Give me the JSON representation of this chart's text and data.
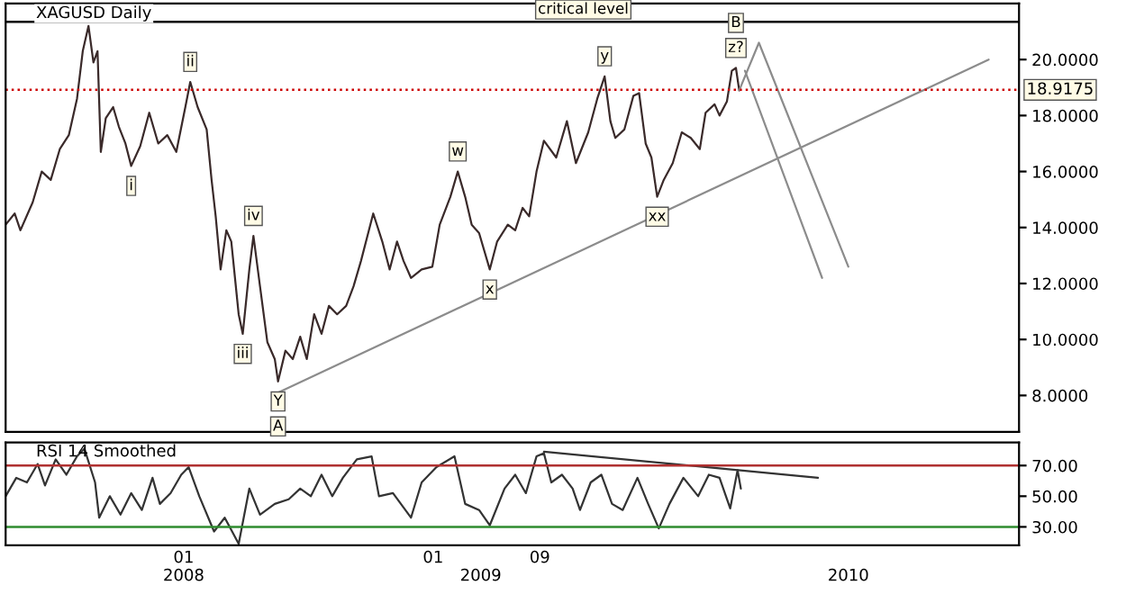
{
  "chart_data": [
    {
      "type": "line",
      "title": "XAGUSD Daily",
      "xlim": [
        "2007-11-27",
        "2011-04-15"
      ],
      "ylim": [
        6.7,
        22.0
      ],
      "yticks": [
        {
          "value": 8,
          "label": "8.0000"
        },
        {
          "value": 10,
          "label": "10.0000"
        },
        {
          "value": 12,
          "label": "12.0000"
        },
        {
          "value": 14,
          "label": "14.0000"
        },
        {
          "value": 16,
          "label": "16.0000"
        },
        {
          "value": 18,
          "label": "18.0000"
        },
        {
          "value": 20,
          "label": "20.0000"
        }
      ],
      "tick_labels": "y",
      "series": [
        {
          "color": "#3a2a2a",
          "x": [
            "2007-11-27",
            "2007-12-08",
            "2007-12-15",
            "2007-12-30",
            "2008-01-10",
            "2008-01-21",
            "2008-02-01",
            "2008-02-12",
            "2008-02-22",
            "2008-02-29",
            "2008-03-07",
            "2008-03-13",
            "2008-03-18",
            "2008-03-22",
            "2008-03-28",
            "2008-04-06",
            "2008-04-13",
            "2008-04-21",
            "2008-04-28",
            "2008-05-09",
            "2008-05-20",
            "2008-05-31",
            "2008-06-11",
            "2008-06-22",
            "2008-07-03",
            "2008-07-09",
            "2008-07-18",
            "2008-07-29",
            "2008-08-04",
            "2008-08-09",
            "2008-08-15",
            "2008-08-22",
            "2008-08-28",
            "2008-09-06",
            "2008-09-11",
            "2008-09-19",
            "2008-09-24",
            "2008-10-02",
            "2008-10-11",
            "2008-10-20",
            "2008-10-24",
            "2008-11-02",
            "2008-11-11",
            "2008-11-20",
            "2008-11-28",
            "2008-12-07",
            "2008-12-16",
            "2008-12-25",
            "2009-01-04",
            "2009-01-15",
            "2009-01-24",
            "2009-02-02",
            "2009-02-17",
            "2009-02-28",
            "2009-03-09",
            "2009-03-18",
            "2009-03-26",
            "2009-04-04",
            "2009-04-17",
            "2009-04-30",
            "2009-05-09",
            "2009-05-22",
            "2009-05-31",
            "2009-06-09",
            "2009-06-17",
            "2009-06-26",
            "2009-07-09",
            "2009-07-18",
            "2009-07-31",
            "2009-08-09",
            "2009-08-18",
            "2009-08-26",
            "2009-09-04",
            "2009-09-13",
            "2009-09-28",
            "2009-10-11",
            "2009-10-22",
            "2009-11-06",
            "2009-11-17",
            "2009-11-26",
            "2009-12-03",
            "2009-12-09",
            "2009-12-20",
            "2009-12-31",
            "2010-01-07",
            "2010-01-15",
            "2010-01-22",
            "2010-01-29",
            "2010-02-06",
            "2010-02-17",
            "2010-02-28",
            "2010-03-11",
            "2010-03-22",
            "2010-03-29",
            "2010-04-09",
            "2010-04-15",
            "2010-04-24",
            "2010-04-30",
            "2010-05-05",
            "2010-05-09"
          ],
          "values": [
            14.1,
            14.5,
            13.9,
            14.9,
            16.0,
            15.7,
            16.8,
            17.3,
            18.6,
            20.3,
            21.2,
            19.9,
            20.3,
            16.7,
            17.9,
            18.3,
            17.6,
            17.0,
            16.2,
            16.9,
            18.1,
            17.0,
            17.3,
            16.7,
            18.3,
            19.2,
            18.3,
            17.5,
            15.7,
            14.4,
            12.5,
            13.9,
            13.5,
            10.9,
            10.2,
            12.5,
            13.7,
            11.9,
            9.9,
            9.3,
            8.5,
            9.6,
            9.3,
            10.1,
            9.3,
            10.9,
            10.2,
            11.2,
            10.9,
            11.2,
            11.9,
            12.8,
            14.5,
            13.5,
            12.5,
            13.5,
            12.8,
            12.2,
            12.5,
            12.6,
            14.1,
            15.1,
            16.0,
            15.1,
            14.1,
            13.8,
            12.5,
            13.5,
            14.1,
            13.9,
            14.7,
            14.4,
            16.0,
            17.1,
            16.5,
            17.8,
            16.3,
            17.4,
            18.6,
            19.4,
            17.8,
            17.2,
            17.5,
            18.7,
            18.8,
            17.0,
            16.5,
            15.1,
            15.7,
            16.3,
            17.4,
            17.2,
            16.8,
            18.1,
            18.4,
            18.0,
            18.5,
            19.6,
            19.7,
            18.9
          ]
        },
        {
          "color": "#8c8c8c",
          "x": [
            "2008-10-24",
            "2011-03-09"
          ],
          "values": [
            8.1,
            20.0
          ]
        },
        {
          "color": "#8c8c8c",
          "x": [
            "2010-05-16",
            "2010-08-18"
          ],
          "values": [
            19.6,
            12.2
          ]
        },
        {
          "color": "#8c8c8c",
          "x": [
            "2010-05-09",
            "2010-06-02",
            "2010-09-19"
          ],
          "values": [
            18.9,
            20.6,
            12.6
          ]
        }
      ],
      "ref_lines": [
        {
          "axis": "y",
          "value": 18.9175,
          "label": "18.9175",
          "color": "#cc0000",
          "line_style": "dotted"
        },
        {
          "axis": "y",
          "value": 21.35,
          "label": "critical level",
          "color": "#000000",
          "line_style": "solid"
        }
      ],
      "annotations": [
        {
          "text": "i",
          "x": "2008-04-28",
          "y": 16.2
        },
        {
          "text": "ii",
          "x": "2008-07-09",
          "y": 19.2
        },
        {
          "text": "iii",
          "x": "2008-09-11",
          "y": 10.2
        },
        {
          "text": "iv",
          "x": "2008-09-24",
          "y": 13.7
        },
        {
          "text": "Y",
          "x": "2008-10-24",
          "y": 8.5
        },
        {
          "text": "A",
          "x": "2008-10-24",
          "y": 8.5
        },
        {
          "text": "w",
          "x": "2009-05-31",
          "y": 16.0
        },
        {
          "text": "x",
          "x": "2009-07-09",
          "y": 12.5
        },
        {
          "text": "y",
          "x": "2009-11-26",
          "y": 19.4
        },
        {
          "text": "xx",
          "x": "2010-01-29",
          "y": 15.1
        },
        {
          "text": "z?",
          "x": "2010-05-05",
          "y": 19.7
        },
        {
          "text": "B",
          "x": "2010-05-05",
          "y": 19.7
        }
      ]
    },
    {
      "type": "line",
      "title": "RSI 14 Smoothed",
      "xlim": [
        "2007-11-27",
        "2011-04-15"
      ],
      "ylim": [
        18,
        85
      ],
      "yticks": [
        {
          "value": 30,
          "label": "30.00"
        },
        {
          "value": 50,
          "label": "50.00"
        },
        {
          "value": 70,
          "label": "70.00"
        }
      ],
      "xticks": [
        {
          "value": "2008-07-01",
          "label": "01"
        },
        {
          "value": "2009-05-01",
          "label": "01"
        },
        {
          "value": "2009-09-08",
          "label": "09"
        }
      ],
      "x2lim": [
        "2007-11-27",
        "2011-04-15"
      ],
      "x2ticks": [
        {
          "value": "2008-07-01",
          "label": "2008"
        },
        {
          "value": "2009-06-28",
          "label": "2009"
        },
        {
          "value": "2010-09-19",
          "label": "2010"
        }
      ],
      "series": [
        {
          "color": "#333333",
          "x": [
            "2007-11-27",
            "2007-12-10",
            "2007-12-23",
            "2008-01-05",
            "2008-01-14",
            "2008-01-27",
            "2008-02-09",
            "2008-02-22",
            "2008-03-02",
            "2008-03-15",
            "2008-03-20",
            "2008-04-02",
            "2008-04-15",
            "2008-04-28",
            "2008-05-11",
            "2008-05-24",
            "2008-06-02",
            "2008-06-15",
            "2008-06-28",
            "2008-07-07",
            "2008-07-20",
            "2008-08-07",
            "2008-08-20",
            "2008-09-06",
            "2008-09-19",
            "2008-10-02",
            "2008-10-20",
            "2008-11-06",
            "2008-11-20",
            "2008-12-03",
            "2008-12-16",
            "2008-12-29",
            "2009-01-11",
            "2009-01-28",
            "2009-02-15",
            "2009-02-24",
            "2009-03-13",
            "2009-04-04",
            "2009-04-17",
            "2009-05-05",
            "2009-05-27",
            "2009-06-09",
            "2009-06-26",
            "2009-07-09",
            "2009-07-27",
            "2009-08-09",
            "2009-08-22",
            "2009-09-04",
            "2009-09-13",
            "2009-09-22",
            "2009-10-05",
            "2009-10-18",
            "2009-10-27",
            "2009-11-09",
            "2009-11-22",
            "2009-12-05",
            "2009-12-18",
            "2010-01-05",
            "2010-01-18",
            "2010-01-31",
            "2010-02-13",
            "2010-03-02",
            "2010-03-20",
            "2010-04-02",
            "2010-04-15",
            "2010-04-28",
            "2010-05-07",
            "2010-05-11"
          ],
          "values": [
            50,
            62,
            59,
            71,
            57,
            74,
            64,
            76,
            81,
            59,
            36,
            50,
            38,
            52,
            41,
            62,
            45,
            52,
            64,
            69,
            50,
            27,
            36,
            19,
            55,
            38,
            45,
            48,
            55,
            50,
            64,
            50,
            62,
            74,
            76,
            50,
            52,
            36,
            59,
            69,
            76,
            45,
            41,
            31,
            55,
            64,
            52,
            76,
            78,
            59,
            64,
            55,
            41,
            59,
            64,
            45,
            41,
            62,
            45,
            29,
            45,
            62,
            50,
            64,
            62,
            42,
            67,
            55
          ]
        },
        {
          "color": "#333333",
          "x": [
            "2009-09-13",
            "2010-08-13"
          ],
          "values": [
            79,
            62
          ]
        }
      ],
      "ref_lines": [
        {
          "axis": "y",
          "value": 70,
          "color": "#b03030",
          "line_style": "solid"
        },
        {
          "axis": "y",
          "value": 30,
          "color": "#2e8b2e",
          "line_style": "solid"
        }
      ]
    }
  ]
}
